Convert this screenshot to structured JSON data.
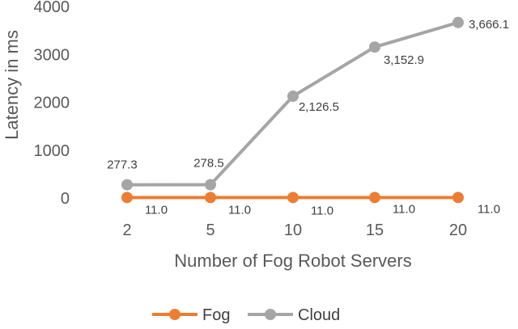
{
  "chart_data": {
    "type": "line",
    "title": "",
    "xlabel": "Number of Fog Robot Servers",
    "ylabel": "Latency in ms",
    "categories": [
      "2",
      "5",
      "10",
      "15",
      "20"
    ],
    "ylim": [
      0,
      4000
    ],
    "yticks": [
      "0",
      "1000",
      "2000",
      "3000",
      "4000"
    ],
    "grid": false,
    "legend_position": "bottom",
    "series": [
      {
        "name": "Fog",
        "values": [
          11.0,
          11.0,
          11.0,
          11.0,
          11.0
        ],
        "labels": [
          "11.0",
          "11.0",
          "11.0",
          "11.0",
          "11.0"
        ],
        "color": "#ED7D31"
      },
      {
        "name": "Cloud",
        "values": [
          277.3,
          278.5,
          2126.5,
          3152.9,
          3666.1
        ],
        "labels": [
          "277.3",
          "278.5",
          "2,126.5",
          "3,152.9",
          "3,666.1"
        ],
        "color": "#A5A5A5"
      }
    ]
  }
}
